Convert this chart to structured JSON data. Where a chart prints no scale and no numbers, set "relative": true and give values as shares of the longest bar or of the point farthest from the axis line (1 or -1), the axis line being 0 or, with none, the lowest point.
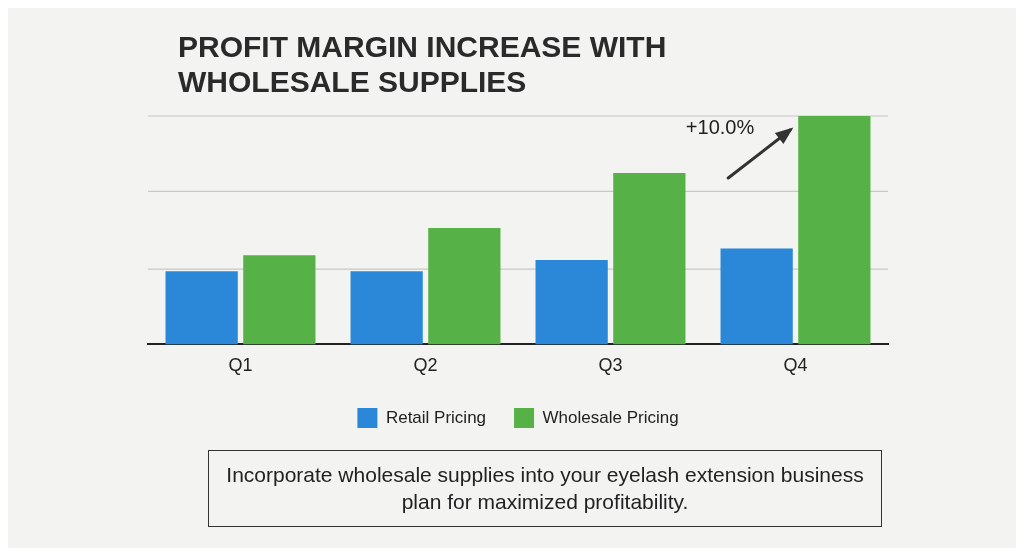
{
  "chart_data": {
    "type": "bar",
    "title": "PROFIT MARGIN INCREASE WITH WHOLESALE SUPPLIES",
    "categories": [
      "Q1",
      "Q2",
      "Q3",
      "Q4"
    ],
    "series": [
      {
        "name": "Retail Pricing",
        "color": "#2b88d8",
        "values": [
          0.32,
          0.32,
          0.37,
          0.42
        ]
      },
      {
        "name": "Wholesale Pricing",
        "color": "#56b247",
        "values": [
          0.39,
          0.51,
          0.75,
          1
        ]
      }
    ],
    "relative": true,
    "legend": "bottom",
    "ref_lines": [
      {
        "axis": "y",
        "value": 0.33,
        "color": "#c8c8c8"
      },
      {
        "axis": "y",
        "value": 0.67,
        "color": "#c8c8c8"
      },
      {
        "axis": "y",
        "value": 1,
        "color": "#c8c8c8"
      }
    ],
    "annotations": [
      {
        "text": "+10.0%",
        "x": "Q4",
        "y": 1
      },
      "Incorporate wholesale supplies into your eyelash extension business plan for maximized profitability."
    ]
  }
}
